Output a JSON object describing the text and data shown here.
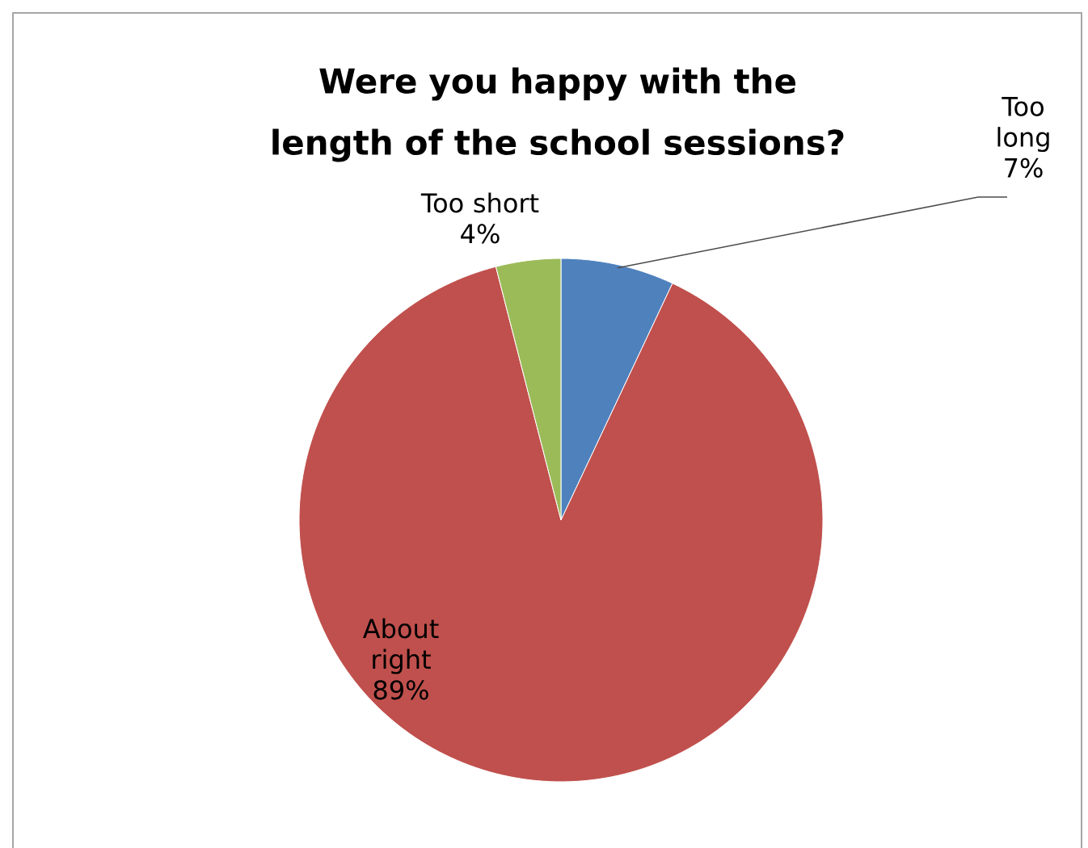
{
  "chart_data": {
    "type": "pie",
    "title": "Were you happy with the length of the school sessions?",
    "categories": [
      "Too long",
      "About right",
      "Too short"
    ],
    "values": [
      7,
      89,
      4
    ],
    "value_labels": [
      "7%",
      "89%",
      "4%"
    ],
    "colors": [
      "#4f81bd",
      "#c0504d",
      "#9bbb59"
    ]
  }
}
